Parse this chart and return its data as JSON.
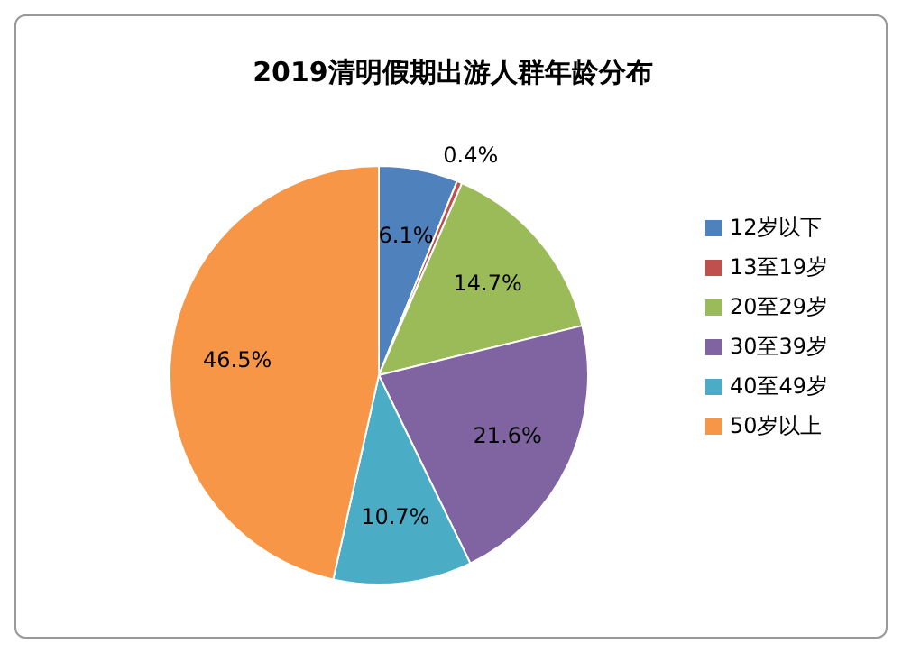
{
  "chart_data": {
    "type": "pie",
    "title": "2019清明假期出游人群年龄分布",
    "categories": [
      "12岁以下",
      "13至19岁",
      "20至29岁",
      "30至39岁",
      "40至49岁",
      "50岁以上"
    ],
    "values": [
      6.1,
      0.4,
      14.7,
      21.6,
      10.7,
      46.5
    ],
    "colors": [
      "#4f81bd",
      "#c0504d",
      "#9bbb59",
      "#8064a2",
      "#4bacc6",
      "#f79646"
    ],
    "value_labels": [
      "6.1%",
      "0.4%",
      "14.7%",
      "21.6%",
      "10.7%",
      "46.5%"
    ],
    "legend": "right"
  }
}
